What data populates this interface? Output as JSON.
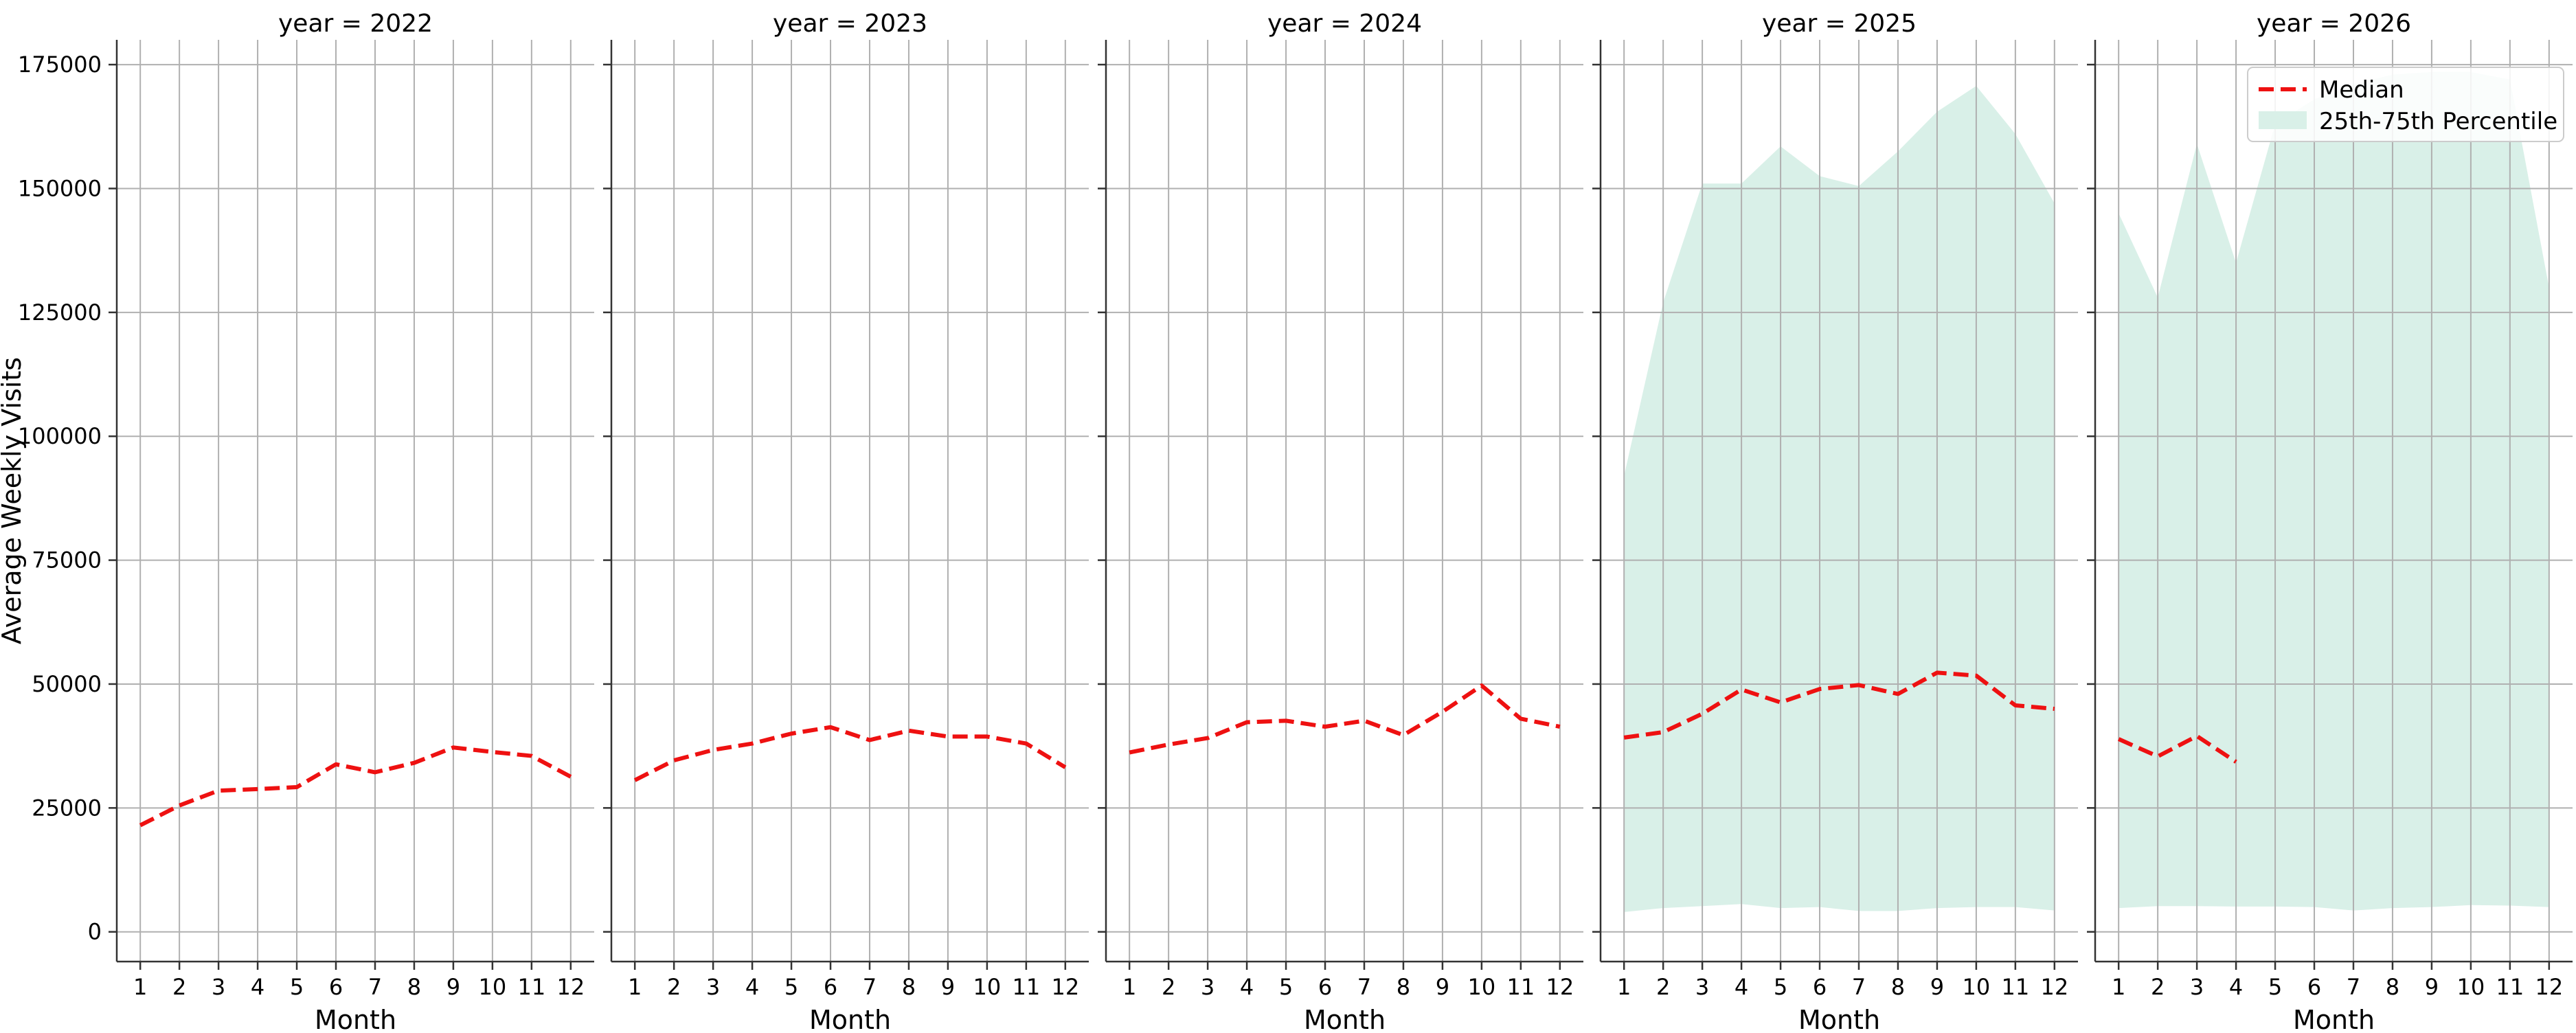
{
  "chart_data": {
    "type": "line",
    "ylabel": "Average Weekly Visits",
    "xlabel": "Month",
    "x": [
      1,
      2,
      3,
      4,
      5,
      6,
      7,
      8,
      9,
      10,
      11,
      12
    ],
    "ylim": [
      -6000,
      180000
    ],
    "yticks": [
      0,
      25000,
      50000,
      75000,
      100000,
      125000,
      150000,
      175000
    ],
    "xlim": [
      0.4,
      12.6
    ],
    "grid": true,
    "legend": {
      "placement": "top-right",
      "entries": [
        "Median",
        "25th-75th Percentile"
      ]
    },
    "colors": {
      "median": "#ee1111",
      "band": "#d9f0e8",
      "grid": "#b0b0b0"
    },
    "panels": [
      {
        "title": "year = 2022",
        "median": [
          21500,
          25500,
          28500,
          28800,
          29200,
          33800,
          32200,
          34100,
          37200,
          36300,
          35500,
          31300
        ],
        "band": null
      },
      {
        "title": "year = 2023",
        "median": [
          30600,
          34600,
          36700,
          38000,
          40000,
          41300,
          38700,
          40600,
          39400,
          39400,
          38000,
          33200
        ],
        "band": null
      },
      {
        "title": "year = 2024",
        "median": [
          36200,
          37800,
          39100,
          42300,
          42600,
          41400,
          42600,
          39700,
          44400,
          49700,
          43000,
          41400
        ],
        "band": null
      },
      {
        "title": "year = 2025",
        "median": [
          39200,
          40300,
          44000,
          48900,
          46300,
          49000,
          49800,
          48000,
          52300,
          51700,
          45700,
          45000
        ],
        "band": {
          "low": [
            4000,
            4800,
            5200,
            5600,
            4800,
            5000,
            4200,
            4200,
            4800,
            5000,
            5000,
            4300
          ],
          "high": [
            92000,
            127000,
            151000,
            151000,
            158500,
            152500,
            150500,
            157500,
            165500,
            170700,
            161000,
            147000
          ]
        }
      },
      {
        "title": "year = 2026",
        "median": [
          38900,
          35400,
          39500,
          34300,
          null,
          null,
          null,
          null,
          null,
          null,
          null,
          null
        ],
        "band": {
          "low": [
            4800,
            5200,
            5200,
            5100,
            5100,
            5000,
            4300,
            4800,
            5000,
            5400,
            5300,
            5000
          ],
          "high": [
            145000,
            128000,
            159000,
            135000,
            163000,
            168000,
            171000,
            173000,
            173500,
            173500,
            172000,
            130000
          ]
        }
      }
    ]
  }
}
